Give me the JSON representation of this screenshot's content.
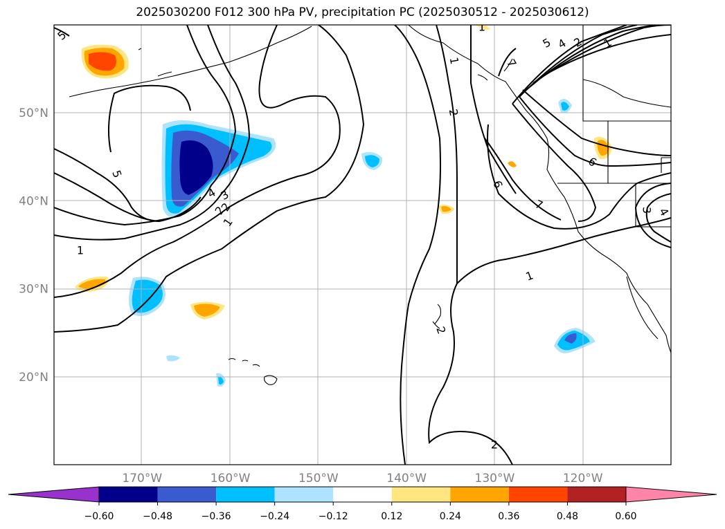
{
  "title": "2025030200 F012 300 hPa PV, precipitation PC (2025030512 - 2025030612)",
  "lon_ticks": [
    {
      "lon": -170,
      "label": "170°W"
    },
    {
      "lon": -160,
      "label": "160°W"
    },
    {
      "lon": -150,
      "label": "150°W"
    },
    {
      "lon": -140,
      "label": "140°W"
    },
    {
      "lon": -130,
      "label": "130°W"
    },
    {
      "lon": -120,
      "label": "120°W"
    }
  ],
  "lat_ticks": [
    {
      "lat": 50,
      "label": "50°N"
    },
    {
      "lat": 40,
      "label": "40°N"
    },
    {
      "lat": 30,
      "label": "30°N"
    },
    {
      "lat": 20,
      "label": "20°N"
    }
  ],
  "extent": {
    "lon_min": -180,
    "lon_max": -110,
    "lat_min": 10,
    "lat_max": 60
  },
  "colorbar": {
    "colors": [
      "#9932CC",
      "#00008B",
      "#3A5BCF",
      "#00BFFF",
      "#ADE3FF",
      "#FFFFFF",
      "#FFE680",
      "#FFA500",
      "#FF4500",
      "#B22222",
      "#FF85A8"
    ],
    "tick_labels": [
      "−0.60",
      "−0.48",
      "−0.36",
      "−0.24",
      "−0.12",
      "0.12",
      "0.24",
      "0.36",
      "0.48",
      "0.60"
    ]
  },
  "contour_labels": [
    "5",
    "1",
    "2",
    "1",
    "5",
    "4",
    "3",
    "2",
    "1",
    "2",
    "1",
    "6",
    "5",
    "4",
    "2",
    "1",
    "6",
    "7",
    "1",
    "7",
    "3",
    "4",
    "2",
    "2"
  ]
}
